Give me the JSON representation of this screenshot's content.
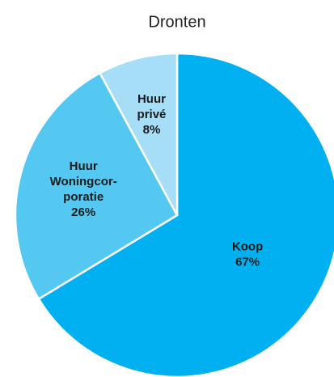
{
  "chart_data": {
    "type": "pie",
    "title": "Dronten",
    "categories": [
      [
        "Koop"
      ],
      [
        "Huur",
        "Woningcor-",
        "poratie"
      ],
      [
        "Huur",
        "privé"
      ]
    ],
    "values": [
      67,
      26,
      8
    ],
    "value_labels": [
      "67%",
      "26%",
      "8%"
    ],
    "colors": [
      "#00b0f0",
      "#55c8f2",
      "#a6def8"
    ]
  }
}
